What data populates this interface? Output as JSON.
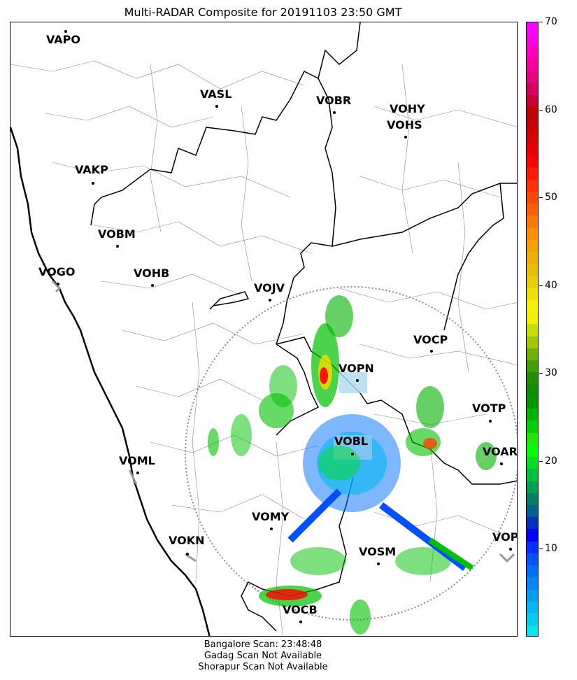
{
  "title": "Multi-RADAR Composite for 20191103 23:50 GMT",
  "stations": [
    {
      "id": "vapo",
      "name": "VAPO"
    },
    {
      "id": "vasl",
      "name": "VASL"
    },
    {
      "id": "vobr",
      "name": "VOBR"
    },
    {
      "id": "vohy",
      "name": "VOHY"
    },
    {
      "id": "vohs",
      "name": "VOHS"
    },
    {
      "id": "vakp",
      "name": "VAKP"
    },
    {
      "id": "vobm",
      "name": "VOBM"
    },
    {
      "id": "vogo",
      "name": "VOGO"
    },
    {
      "id": "vohb",
      "name": "VOHB"
    },
    {
      "id": "vojv",
      "name": "VOJV"
    },
    {
      "id": "vocp",
      "name": "VOCP"
    },
    {
      "id": "vopn",
      "name": "VOPN"
    },
    {
      "id": "votp",
      "name": "VOTP"
    },
    {
      "id": "vobl",
      "name": "VOBL"
    },
    {
      "id": "voar",
      "name": "VOAR"
    },
    {
      "id": "voml",
      "name": "VOML"
    },
    {
      "id": "vomy",
      "name": "VOMY"
    },
    {
      "id": "vokn",
      "name": "VOKN"
    },
    {
      "id": "vopc",
      "name": "VOPC"
    },
    {
      "id": "vosm",
      "name": "VOSM"
    },
    {
      "id": "vocb",
      "name": "VOCB"
    }
  ],
  "colorbar": {
    "min": 0,
    "max": 70,
    "ticks": [
      "10",
      "20",
      "30",
      "40",
      "50",
      "60",
      "70"
    ],
    "colors": [
      "#00e5ee",
      "#00d0f0",
      "#00b8f2",
      "#009ff5",
      "#0088f8",
      "#006ffa",
      "#0055fc",
      "#0030ff",
      "#0000ff",
      "#0030c0",
      "#006090",
      "#008060",
      "#00a050",
      "#00c040",
      "#00e020",
      "#00ff00",
      "#20e800",
      "#00d000",
      "#00b400",
      "#009800",
      "#108c00",
      "#209000",
      "#40a000",
      "#70b000",
      "#a0c800",
      "#c8e000",
      "#f0f000",
      "#f8f000",
      "#f0e000",
      "#e8d000",
      "#e8c000",
      "#f0b000",
      "#f8a000",
      "#ff9000",
      "#ff7800",
      "#ff6000",
      "#ff4800",
      "#ff3000",
      "#ff1800",
      "#ff0000",
      "#e80000",
      "#d80000",
      "#c80000",
      "#c00000",
      "#c80030",
      "#d80060",
      "#e80080",
      "#f800a0",
      "#ff00c0",
      "#ff00e0",
      "#ff00ff"
    ]
  },
  "footer": [
    "Bangalore Scan: 23:48:48",
    "Gadag Scan Not Available",
    "Shorapur Scan Not Available"
  ]
}
